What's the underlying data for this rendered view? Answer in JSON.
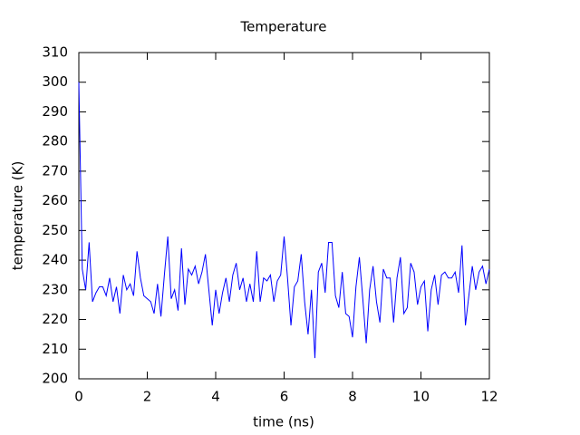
{
  "chart_data": {
    "type": "line",
    "title": "Temperature",
    "x_label": "time (ns)",
    "y_label": "temperature (K)",
    "x": [
      0,
      0.1,
      0.2,
      0.3,
      0.4,
      0.5,
      0.6,
      0.7,
      0.8,
      0.9,
      1,
      1.1,
      1.2,
      1.3,
      1.4,
      1.5,
      1.6,
      1.7,
      1.8,
      1.9,
      2,
      2.1,
      2.2,
      2.3,
      2.4,
      2.5,
      2.6,
      2.7,
      2.8,
      2.9,
      3,
      3.1,
      3.2,
      3.3,
      3.4,
      3.5,
      3.6,
      3.7,
      3.8,
      3.9,
      4,
      4.1,
      4.2,
      4.3,
      4.4,
      4.5,
      4.6,
      4.7,
      4.8,
      4.9,
      5,
      5.1,
      5.2,
      5.3,
      5.4,
      5.5,
      5.6,
      5.7,
      5.8,
      5.9,
      6,
      6.1,
      6.2,
      6.3,
      6.4,
      6.5,
      6.6,
      6.7,
      6.8,
      6.9,
      7,
      7.1,
      7.2,
      7.3,
      7.4,
      7.5,
      7.6,
      7.7,
      7.8,
      7.9,
      8,
      8.1,
      8.2,
      8.3,
      8.4,
      8.5,
      8.6,
      8.7,
      8.8,
      8.9,
      9,
      9.1,
      9.2,
      9.3,
      9.4,
      9.5,
      9.6,
      9.7,
      9.8,
      9.9,
      10,
      10.1,
      10.2,
      10.3,
      10.4,
      10.5,
      10.6,
      10.7,
      10.8,
      10.9,
      11,
      11.1,
      11.2,
      11.3,
      11.4,
      11.5,
      11.6,
      11.7,
      11.8,
      11.9,
      12
    ],
    "values": [
      300,
      237,
      230,
      246,
      226,
      229,
      231,
      231,
      228,
      234,
      226,
      231,
      222,
      235,
      230,
      232,
      228,
      243,
      234,
      228,
      227,
      226,
      222,
      232,
      221,
      235,
      248,
      227,
      230,
      223,
      244,
      225,
      237,
      235,
      238,
      232,
      236,
      242,
      230,
      218,
      230,
      222,
      229,
      234,
      226,
      235,
      239,
      230,
      234,
      226,
      232,
      226,
      243,
      226,
      234,
      233,
      235,
      226,
      233,
      235,
      248,
      234,
      218,
      231,
      233,
      242,
      226,
      215,
      230,
      207,
      236,
      239,
      229,
      246,
      246,
      228,
      224,
      236,
      222,
      221,
      214,
      231,
      241,
      227,
      212,
      230,
      238,
      226,
      219,
      237,
      234,
      234,
      219,
      234,
      241,
      222,
      224,
      239,
      236,
      225,
      231,
      233,
      216,
      230,
      235,
      225,
      235,
      236,
      234,
      234,
      236,
      229,
      245,
      218,
      228,
      238,
      230,
      236,
      238,
      232,
      237
    ],
    "color": "#0000ff",
    "xlim": [
      0,
      12
    ],
    "xticks": [
      0,
      2,
      4,
      6,
      8,
      10,
      12
    ],
    "ylim": [
      200,
      310
    ],
    "yticks": [
      200,
      210,
      220,
      230,
      240,
      250,
      260,
      270,
      280,
      290,
      300,
      310
    ]
  }
}
